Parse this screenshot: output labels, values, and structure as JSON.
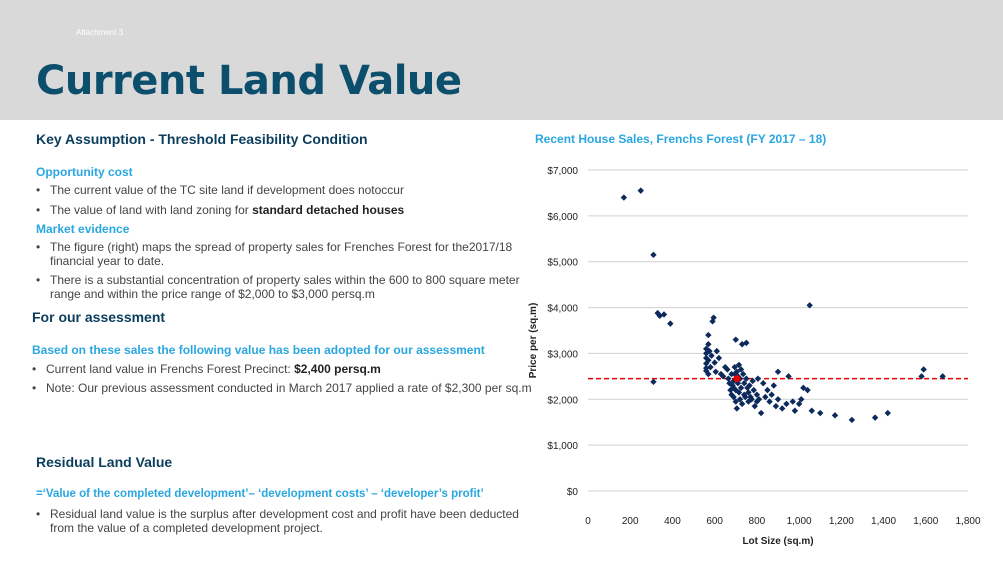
{
  "header": {
    "attachment": "Attachment 3",
    "title": "Current Land Value"
  },
  "left": {
    "section1_title": "Key Assumption - Threshold Feasibility Condition",
    "opportunity_title": "Opportunity cost",
    "opp_bullet1": "The current value of the TC site land if development does notoccur",
    "opp_bullet2_prefix": "The value of land with land zoning for ",
    "opp_bullet2_bold": "standard detached houses",
    "market_title": "Market evidence",
    "mkt_bullet1_line1": "The figure (right) maps the spread of property sales for Frenches Forest for the2017/18",
    "mkt_bullet1_line2": "financial year to date.",
    "mkt_bullet2_line1": "There is a substantial concentration of property sales within the 600 to 800 square meter",
    "mkt_bullet2_line2": "range and within the price range of $2,000 to $3,000 persq.m",
    "assessment_title": "For our assessment",
    "based_title": "Based on these sales the following value has been adopted for our assessment",
    "assess_bullet1_prefix": "Current land value in Frenchs Forest Precinct: ",
    "assess_bullet1_bold": "$2,400 persq.m",
    "assess_bullet2": "Note: Our previous assessment conducted in March 2017 applied a rate of $2,300 per sq.m",
    "residual_title": "Residual Land Value",
    "formula": "=‘Value of the completed development’– ‘development costs’ – ‘developer’s profit’",
    "res_bullet1_line1": "Residual land value is the surplus after development cost and profit have been deducted",
    "res_bullet1_line2": "from the value of a completed development project."
  },
  "chart_data": {
    "type": "scatter",
    "title": "Recent House Sales, Frenchs Forest (FY 2017 – 18)",
    "xlabel": "Lot Size (sq.m)",
    "ylabel": "Price per (sq.m)",
    "xlim": [
      0,
      1800
    ],
    "ylim": [
      0,
      7000
    ],
    "x_ticks": [
      0,
      200,
      400,
      600,
      800,
      1000,
      1200,
      1400,
      1600,
      1800
    ],
    "x_tick_labels": [
      "0",
      "200",
      "400",
      "600",
      "800",
      "1,000",
      "1,200",
      "1,400",
      "1,600",
      "1,800"
    ],
    "y_ticks": [
      0,
      1000,
      2000,
      3000,
      4000,
      5000,
      6000,
      7000
    ],
    "y_tick_labels": [
      "$0",
      "$1,000",
      "$2,000",
      "$3,000",
      "$4,000",
      "$5,000",
      "$6,000",
      "$7,000"
    ],
    "grid": true,
    "reference_line_y": 2450,
    "highlight_point": [
      705,
      2450
    ],
    "colors": {
      "points": "#0d2a5c",
      "reference": "#e60000",
      "grid": "#d0d0d0"
    },
    "points": [
      [
        170,
        6400
      ],
      [
        250,
        6550
      ],
      [
        310,
        5150
      ],
      [
        330,
        3880
      ],
      [
        340,
        3820
      ],
      [
        360,
        3850
      ],
      [
        390,
        3650
      ],
      [
        310,
        2380
      ],
      [
        560,
        3100
      ],
      [
        560,
        3000
      ],
      [
        560,
        2900
      ],
      [
        560,
        2780
      ],
      [
        560,
        2680
      ],
      [
        560,
        2620
      ],
      [
        570,
        3400
      ],
      [
        570,
        3200
      ],
      [
        570,
        2850
      ],
      [
        570,
        2550
      ],
      [
        575,
        3050
      ],
      [
        580,
        2700
      ],
      [
        585,
        2950
      ],
      [
        590,
        3700
      ],
      [
        595,
        3780
      ],
      [
        600,
        2800
      ],
      [
        605,
        2600
      ],
      [
        610,
        3050
      ],
      [
        620,
        2900
      ],
      [
        630,
        2550
      ],
      [
        640,
        2500
      ],
      [
        650,
        2700
      ],
      [
        660,
        2650
      ],
      [
        665,
        2450
      ],
      [
        670,
        2350
      ],
      [
        675,
        2200
      ],
      [
        680,
        2550
      ],
      [
        680,
        2100
      ],
      [
        685,
        2300
      ],
      [
        690,
        2400
      ],
      [
        690,
        2250
      ],
      [
        690,
        2050
      ],
      [
        695,
        2700
      ],
      [
        695,
        2550
      ],
      [
        700,
        3300
      ],
      [
        700,
        2200
      ],
      [
        700,
        1950
      ],
      [
        705,
        1800
      ],
      [
        705,
        2600
      ],
      [
        710,
        2500
      ],
      [
        710,
        2350
      ],
      [
        715,
        2150
      ],
      [
        715,
        2750
      ],
      [
        720,
        2000
      ],
      [
        720,
        2450
      ],
      [
        725,
        2650
      ],
      [
        725,
        2250
      ],
      [
        730,
        1900
      ],
      [
        730,
        3200
      ],
      [
        735,
        2550
      ],
      [
        740,
        2350
      ],
      [
        740,
        2100
      ],
      [
        745,
        2050
      ],
      [
        750,
        3230
      ],
      [
        750,
        2450
      ],
      [
        755,
        2250
      ],
      [
        760,
        2150
      ],
      [
        760,
        1950
      ],
      [
        765,
        2300
      ],
      [
        770,
        2050
      ],
      [
        775,
        2000
      ],
      [
        780,
        2400
      ],
      [
        785,
        2200
      ],
      [
        790,
        1850
      ],
      [
        800,
        2100
      ],
      [
        800,
        1950
      ],
      [
        805,
        2450
      ],
      [
        810,
        2000
      ],
      [
        820,
        1700
      ],
      [
        830,
        2350
      ],
      [
        840,
        2050
      ],
      [
        850,
        2200
      ],
      [
        860,
        1950
      ],
      [
        870,
        2100
      ],
      [
        880,
        2300
      ],
      [
        890,
        1850
      ],
      [
        900,
        2600
      ],
      [
        900,
        2000
      ],
      [
        920,
        1800
      ],
      [
        940,
        1900
      ],
      [
        950,
        2500
      ],
      [
        970,
        1950
      ],
      [
        980,
        1750
      ],
      [
        1000,
        1900
      ],
      [
        1010,
        2000
      ],
      [
        1020,
        2250
      ],
      [
        1040,
        2200
      ],
      [
        1050,
        4050
      ],
      [
        1060,
        1750
      ],
      [
        1100,
        1700
      ],
      [
        1170,
        1650
      ],
      [
        1250,
        1550
      ],
      [
        1360,
        1600
      ],
      [
        1420,
        1700
      ],
      [
        1580,
        2500
      ],
      [
        1590,
        2650
      ],
      [
        1680,
        2500
      ]
    ]
  }
}
